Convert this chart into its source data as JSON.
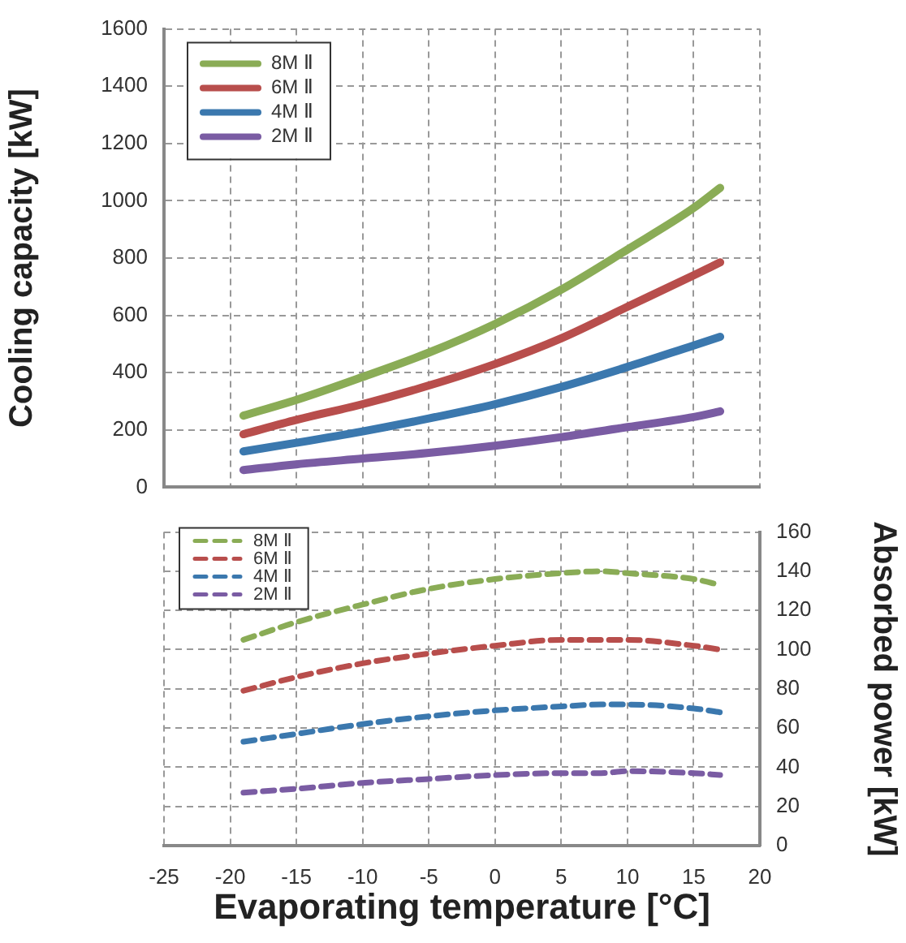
{
  "chart_data": [
    {
      "type": "line",
      "ylabel": "Cooling capacity [kW]",
      "x": [
        -19,
        -15,
        -10,
        -5,
        0,
        5,
        10,
        15,
        17
      ],
      "xlim": [
        -25,
        20
      ],
      "xticks": [
        -25,
        -20,
        -15,
        -10,
        -5,
        0,
        5,
        10,
        15,
        20
      ],
      "ylim": [
        0,
        1600
      ],
      "yticks": [
        0,
        200,
        400,
        600,
        800,
        1000,
        1200,
        1400,
        1600
      ],
      "tick_labels": "y",
      "grid": true,
      "legend": "top left",
      "marker": "none",
      "line_style": "solid",
      "series": [
        {
          "name": "8M Ⅱ",
          "color": "#8aac56",
          "values": [
            250,
            305,
            385,
            470,
            570,
            690,
            830,
            975,
            1045
          ]
        },
        {
          "name": "6M Ⅱ",
          "color": "#b84e4c",
          "values": [
            185,
            235,
            290,
            355,
            430,
            520,
            630,
            740,
            785
          ]
        },
        {
          "name": "4M Ⅱ",
          "color": "#3b78ae",
          "values": [
            125,
            155,
            195,
            240,
            290,
            350,
            420,
            495,
            525
          ]
        },
        {
          "name": "2M Ⅱ",
          "color": "#7a5ca3",
          "values": [
            60,
            80,
            100,
            120,
            145,
            175,
            210,
            245,
            265
          ]
        }
      ]
    },
    {
      "type": "line",
      "xlabel": "Evaporating temperature [°C]",
      "y2label": "Absorbed power [kW]",
      "x": [
        -19,
        -15,
        -10,
        -5,
        0,
        5,
        8,
        10,
        15,
        17
      ],
      "xlim": [
        -25,
        20
      ],
      "xticks": [
        -25,
        -20,
        -15,
        -10,
        -5,
        0,
        5,
        10,
        15,
        20
      ],
      "y2lim": [
        0,
        160
      ],
      "y2ticks": [
        0,
        20,
        40,
        60,
        80,
        100,
        120,
        140,
        160
      ],
      "grid": true,
      "legend": "top left",
      "marker": "none",
      "line_style": "dashed",
      "series": [
        {
          "name": "8M Ⅱ",
          "color": "#8aac56",
          "axis": "y2",
          "values": [
            105,
            114,
            123,
            131,
            136,
            139,
            140,
            139,
            136,
            133
          ]
        },
        {
          "name": "6M Ⅱ",
          "color": "#b84e4c",
          "axis": "y2",
          "values": [
            79,
            86,
            93,
            98,
            102,
            105,
            105,
            105,
            102,
            100
          ]
        },
        {
          "name": "4M Ⅱ",
          "color": "#3b78ae",
          "axis": "y2",
          "values": [
            53,
            57,
            62,
            66,
            69,
            71,
            72,
            72,
            70,
            68
          ]
        },
        {
          "name": "2M Ⅱ",
          "color": "#7a5ca3",
          "axis": "y2",
          "values": [
            27,
            29,
            32,
            34,
            36,
            37,
            37,
            38,
            37,
            36
          ]
        }
      ]
    }
  ]
}
